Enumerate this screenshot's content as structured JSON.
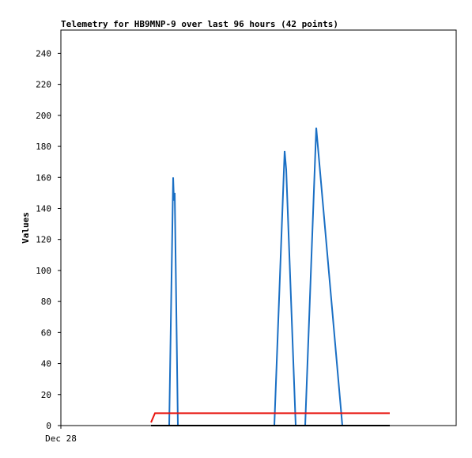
{
  "chart_data": {
    "type": "line",
    "title": "Telemetry for HB9MNP-9 over last 96 hours (42 points)",
    "y_label": "Values",
    "xlim": [
      0,
      100
    ],
    "xticks": [
      {
        "value": 0,
        "label": "Dec 28"
      }
    ],
    "ylim": [
      0,
      255
    ],
    "yticks": [
      0,
      20,
      40,
      60,
      80,
      100,
      120,
      140,
      160,
      180,
      200,
      220,
      240
    ],
    "series": [
      {
        "color": "#1a6fc4",
        "x": [
          22.8,
          27.4,
          28.4,
          28.6,
          28.8,
          29.6,
          54,
          56.6,
          57,
          59.4,
          61.8,
          64.6,
          71.2,
          83.2
        ],
        "values": [
          0,
          0,
          160,
          145,
          150,
          0,
          0,
          177,
          165,
          0,
          0,
          192,
          0,
          0
        ]
      },
      {
        "color": "#e8140e",
        "x": [
          22.8,
          23.8,
          83.2
        ],
        "values": [
          2,
          8,
          8
        ]
      },
      {
        "color": "#000000",
        "x": [
          22.8,
          83.2
        ],
        "values": [
          0,
          0
        ]
      }
    ]
  }
}
